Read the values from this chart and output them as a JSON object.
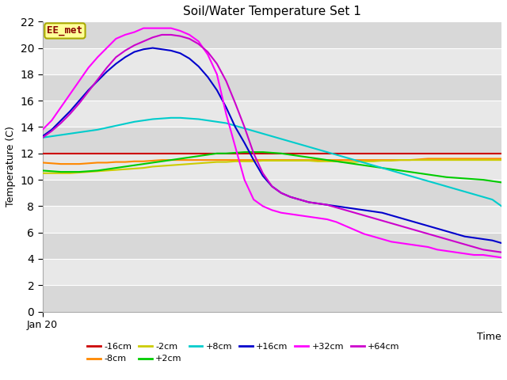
{
  "title": "Soil/Water Temperature Set 1",
  "xlabel": "Time",
  "ylabel": "Temperature (C)",
  "annotation": "EE_met",
  "ylim": [
    0,
    22
  ],
  "yticks": [
    0,
    2,
    4,
    6,
    8,
    10,
    12,
    14,
    16,
    18,
    20,
    22
  ],
  "x_label_start": "Jan 20",
  "series_order": [
    "-16cm",
    "-8cm",
    "-2cm",
    "+2cm",
    "+8cm",
    "+16cm",
    "+32cm",
    "+64cm"
  ],
  "series": {
    "-16cm": {
      "color": "#cc0000",
      "data_y": [
        12.0,
        12.0,
        12.0,
        12.0,
        12.0,
        12.0,
        12.0,
        12.0,
        12.0,
        12.0,
        12.0,
        12.0,
        12.0,
        12.0,
        12.0,
        12.0,
        12.0,
        12.0,
        12.0,
        12.0,
        12.0,
        12.0,
        12.0,
        12.0,
        12.0,
        12.0,
        12.0,
        12.0,
        12.0,
        12.0,
        12.0,
        12.0,
        12.0,
        12.0,
        12.0,
        12.0,
        12.0,
        12.0,
        12.0,
        12.0,
        12.0,
        12.0,
        12.0,
        12.0,
        12.0,
        12.0,
        12.0,
        12.0,
        12.0,
        12.0,
        12.0
      ]
    },
    "-8cm": {
      "color": "#ff8800",
      "data_y": [
        11.3,
        11.25,
        11.2,
        11.2,
        11.2,
        11.25,
        11.3,
        11.3,
        11.35,
        11.35,
        11.4,
        11.4,
        11.45,
        11.5,
        11.5,
        11.5,
        11.5,
        11.5,
        11.5,
        11.5,
        11.5,
        11.5,
        11.5,
        11.5,
        11.5,
        11.5,
        11.5,
        11.5,
        11.5,
        11.5,
        11.5,
        11.5,
        11.5,
        11.5,
        11.5,
        11.5,
        11.5,
        11.5,
        11.5,
        11.5,
        11.5,
        11.55,
        11.6,
        11.6,
        11.6,
        11.6,
        11.6,
        11.6,
        11.6,
        11.6,
        11.6
      ]
    },
    "-2cm": {
      "color": "#cccc00",
      "data_y": [
        10.5,
        10.5,
        10.5,
        10.5,
        10.55,
        10.6,
        10.65,
        10.7,
        10.75,
        10.8,
        10.85,
        10.9,
        11.0,
        11.05,
        11.1,
        11.15,
        11.2,
        11.25,
        11.3,
        11.35,
        11.35,
        11.4,
        11.4,
        11.4,
        11.45,
        11.45,
        11.45,
        11.45,
        11.45,
        11.45,
        11.4,
        11.4,
        11.4,
        11.35,
        11.35,
        11.4,
        11.4,
        11.45,
        11.45,
        11.5,
        11.5,
        11.5,
        11.5,
        11.5,
        11.5,
        11.5,
        11.5,
        11.5,
        11.5,
        11.5,
        11.5
      ]
    },
    "+2cm": {
      "color": "#00cc00",
      "data_y": [
        10.7,
        10.65,
        10.6,
        10.6,
        10.6,
        10.65,
        10.7,
        10.8,
        10.9,
        11.0,
        11.1,
        11.2,
        11.3,
        11.4,
        11.5,
        11.6,
        11.7,
        11.8,
        11.9,
        12.0,
        12.0,
        12.05,
        12.1,
        12.1,
        12.1,
        12.05,
        12.0,
        11.9,
        11.8,
        11.7,
        11.6,
        11.5,
        11.4,
        11.3,
        11.2,
        11.1,
        11.0,
        10.9,
        10.8,
        10.7,
        10.6,
        10.5,
        10.4,
        10.3,
        10.2,
        10.15,
        10.1,
        10.05,
        10.0,
        9.9,
        9.8
      ]
    },
    "+8cm": {
      "color": "#00cccc",
      "data_y": [
        13.2,
        13.3,
        13.4,
        13.5,
        13.6,
        13.7,
        13.8,
        13.95,
        14.1,
        14.25,
        14.4,
        14.5,
        14.6,
        14.65,
        14.7,
        14.7,
        14.65,
        14.6,
        14.5,
        14.4,
        14.3,
        14.1,
        13.9,
        13.7,
        13.5,
        13.3,
        13.1,
        12.9,
        12.7,
        12.5,
        12.3,
        12.1,
        11.9,
        11.7,
        11.5,
        11.3,
        11.1,
        10.9,
        10.7,
        10.5,
        10.3,
        10.1,
        9.9,
        9.7,
        9.5,
        9.3,
        9.1,
        8.9,
        8.7,
        8.5,
        8.0
      ]
    },
    "+16cm": {
      "color": "#0000cc",
      "data_y": [
        13.3,
        13.8,
        14.5,
        15.2,
        16.0,
        16.8,
        17.5,
        18.2,
        18.8,
        19.3,
        19.7,
        19.9,
        20.0,
        19.9,
        19.8,
        19.6,
        19.2,
        18.6,
        17.8,
        16.8,
        15.5,
        14.0,
        12.8,
        11.5,
        10.3,
        9.5,
        9.0,
        8.7,
        8.5,
        8.3,
        8.2,
        8.1,
        8.0,
        7.9,
        7.8,
        7.7,
        7.6,
        7.5,
        7.3,
        7.1,
        6.9,
        6.7,
        6.5,
        6.3,
        6.1,
        5.9,
        5.7,
        5.6,
        5.5,
        5.4,
        5.2
      ]
    },
    "+32cm": {
      "color": "#ff00ff",
      "data_y": [
        13.8,
        14.5,
        15.5,
        16.5,
        17.5,
        18.5,
        19.3,
        20.0,
        20.7,
        21.0,
        21.2,
        21.5,
        21.5,
        21.5,
        21.5,
        21.3,
        21.0,
        20.5,
        19.5,
        18.0,
        15.0,
        12.5,
        10.0,
        8.5,
        8.0,
        7.7,
        7.5,
        7.4,
        7.3,
        7.2,
        7.1,
        7.0,
        6.8,
        6.5,
        6.2,
        5.9,
        5.7,
        5.5,
        5.3,
        5.2,
        5.1,
        5.0,
        4.9,
        4.7,
        4.6,
        4.5,
        4.4,
        4.3,
        4.3,
        4.2,
        4.1
      ]
    },
    "+64cm": {
      "color": "#cc00cc",
      "data_y": [
        13.2,
        13.7,
        14.3,
        15.0,
        15.8,
        16.7,
        17.6,
        18.5,
        19.3,
        19.8,
        20.2,
        20.5,
        20.8,
        21.0,
        21.0,
        20.9,
        20.7,
        20.3,
        19.7,
        18.8,
        17.5,
        15.8,
        14.0,
        12.0,
        10.5,
        9.5,
        9.0,
        8.7,
        8.5,
        8.3,
        8.2,
        8.1,
        7.9,
        7.7,
        7.5,
        7.3,
        7.1,
        6.9,
        6.7,
        6.5,
        6.3,
        6.1,
        5.9,
        5.7,
        5.5,
        5.3,
        5.1,
        4.9,
        4.7,
        4.6,
        4.5
      ]
    }
  },
  "annotation_box_facecolor": "#ffff99",
  "annotation_text_color": "#880000",
  "annotation_border_color": "#aaaa00",
  "band_colors": [
    "#d8d8d8",
    "#e8e8e8"
  ],
  "grid_color": "#ffffff",
  "legend_order": [
    "-16cm",
    "-8cm",
    "-2cm",
    "+2cm",
    "+8cm",
    "+16cm",
    "+32cm",
    "+64cm"
  ]
}
